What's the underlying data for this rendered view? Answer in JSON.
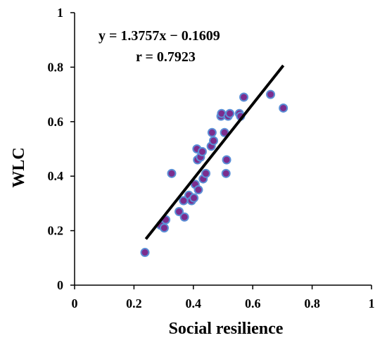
{
  "chart_data": {
    "type": "scatter",
    "xlabel": "Social resilience",
    "ylabel": "WLC",
    "xlim": [
      0,
      1
    ],
    "ylim": [
      0,
      1
    ],
    "xticks": [
      0,
      0.2,
      0.4,
      0.6,
      0.8,
      1
    ],
    "yticks": [
      0,
      0.2,
      0.4,
      0.6,
      0.8,
      1
    ],
    "xtick_labels": [
      "0",
      "0.2",
      "0.4",
      "0.6",
      "0.8",
      "1"
    ],
    "ytick_labels": [
      "0",
      "0.2",
      "0.4",
      "0.6",
      "0.8",
      "1"
    ],
    "grid": false,
    "annotations": [
      "y = 1.3757x − 0.1609",
      "r = 0.7923"
    ],
    "trendline": {
      "slope": 1.3757,
      "intercept": -0.1609,
      "x_start": 0.24,
      "x_end": 0.703,
      "color": "#000000"
    },
    "marker": {
      "fill": "#7b2d8e",
      "stroke": "#5b8fd6"
    },
    "points": [
      [
        0.237,
        0.12
      ],
      [
        0.29,
        0.22
      ],
      [
        0.302,
        0.21
      ],
      [
        0.307,
        0.24
      ],
      [
        0.327,
        0.41
      ],
      [
        0.352,
        0.27
      ],
      [
        0.367,
        0.31
      ],
      [
        0.37,
        0.25
      ],
      [
        0.385,
        0.33
      ],
      [
        0.394,
        0.31
      ],
      [
        0.402,
        0.32
      ],
      [
        0.406,
        0.37
      ],
      [
        0.412,
        0.5
      ],
      [
        0.414,
        0.46
      ],
      [
        0.417,
        0.35
      ],
      [
        0.424,
        0.47
      ],
      [
        0.43,
        0.49
      ],
      [
        0.433,
        0.39
      ],
      [
        0.442,
        0.41
      ],
      [
        0.46,
        0.51
      ],
      [
        0.463,
        0.56
      ],
      [
        0.468,
        0.53
      ],
      [
        0.493,
        0.62
      ],
      [
        0.495,
        0.63
      ],
      [
        0.505,
        0.56
      ],
      [
        0.51,
        0.41
      ],
      [
        0.512,
        0.46
      ],
      [
        0.517,
        0.62
      ],
      [
        0.523,
        0.63
      ],
      [
        0.555,
        0.63
      ],
      [
        0.559,
        0.62
      ],
      [
        0.57,
        0.69
      ],
      [
        0.66,
        0.7
      ],
      [
        0.703,
        0.65
      ]
    ]
  }
}
